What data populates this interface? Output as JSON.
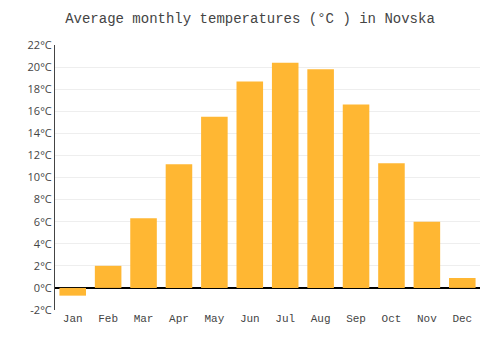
{
  "chart_data": {
    "type": "bar",
    "title": "Average monthly temperatures (°C ) in Novska",
    "categories": [
      "Jan",
      "Feb",
      "Mar",
      "Apr",
      "May",
      "Jun",
      "Jul",
      "Aug",
      "Sep",
      "Oct",
      "Nov",
      "Dec"
    ],
    "values": [
      -0.7,
      2.0,
      6.3,
      11.2,
      15.5,
      18.7,
      20.4,
      19.8,
      16.6,
      11.3,
      6.0,
      0.9
    ],
    "color": "#FFB733",
    "ylim": [
      -2,
      22
    ],
    "yticks": [
      {
        "value": -2,
        "label": "-2°C"
      },
      {
        "value": 0,
        "label": "0°C"
      },
      {
        "value": 2,
        "label": "2°C"
      },
      {
        "value": 4,
        "label": "4°C"
      },
      {
        "value": 6,
        "label": "6°C"
      },
      {
        "value": 8,
        "label": "8°C"
      },
      {
        "value": 10,
        "label": "10°C"
      },
      {
        "value": 12,
        "label": "12°C"
      },
      {
        "value": 14,
        "label": "14°C"
      },
      {
        "value": 16,
        "label": "16°C"
      },
      {
        "value": 18,
        "label": "18°C"
      },
      {
        "value": 20,
        "label": "20°C"
      },
      {
        "value": 22,
        "label": "22°C"
      }
    ],
    "grid": true
  }
}
